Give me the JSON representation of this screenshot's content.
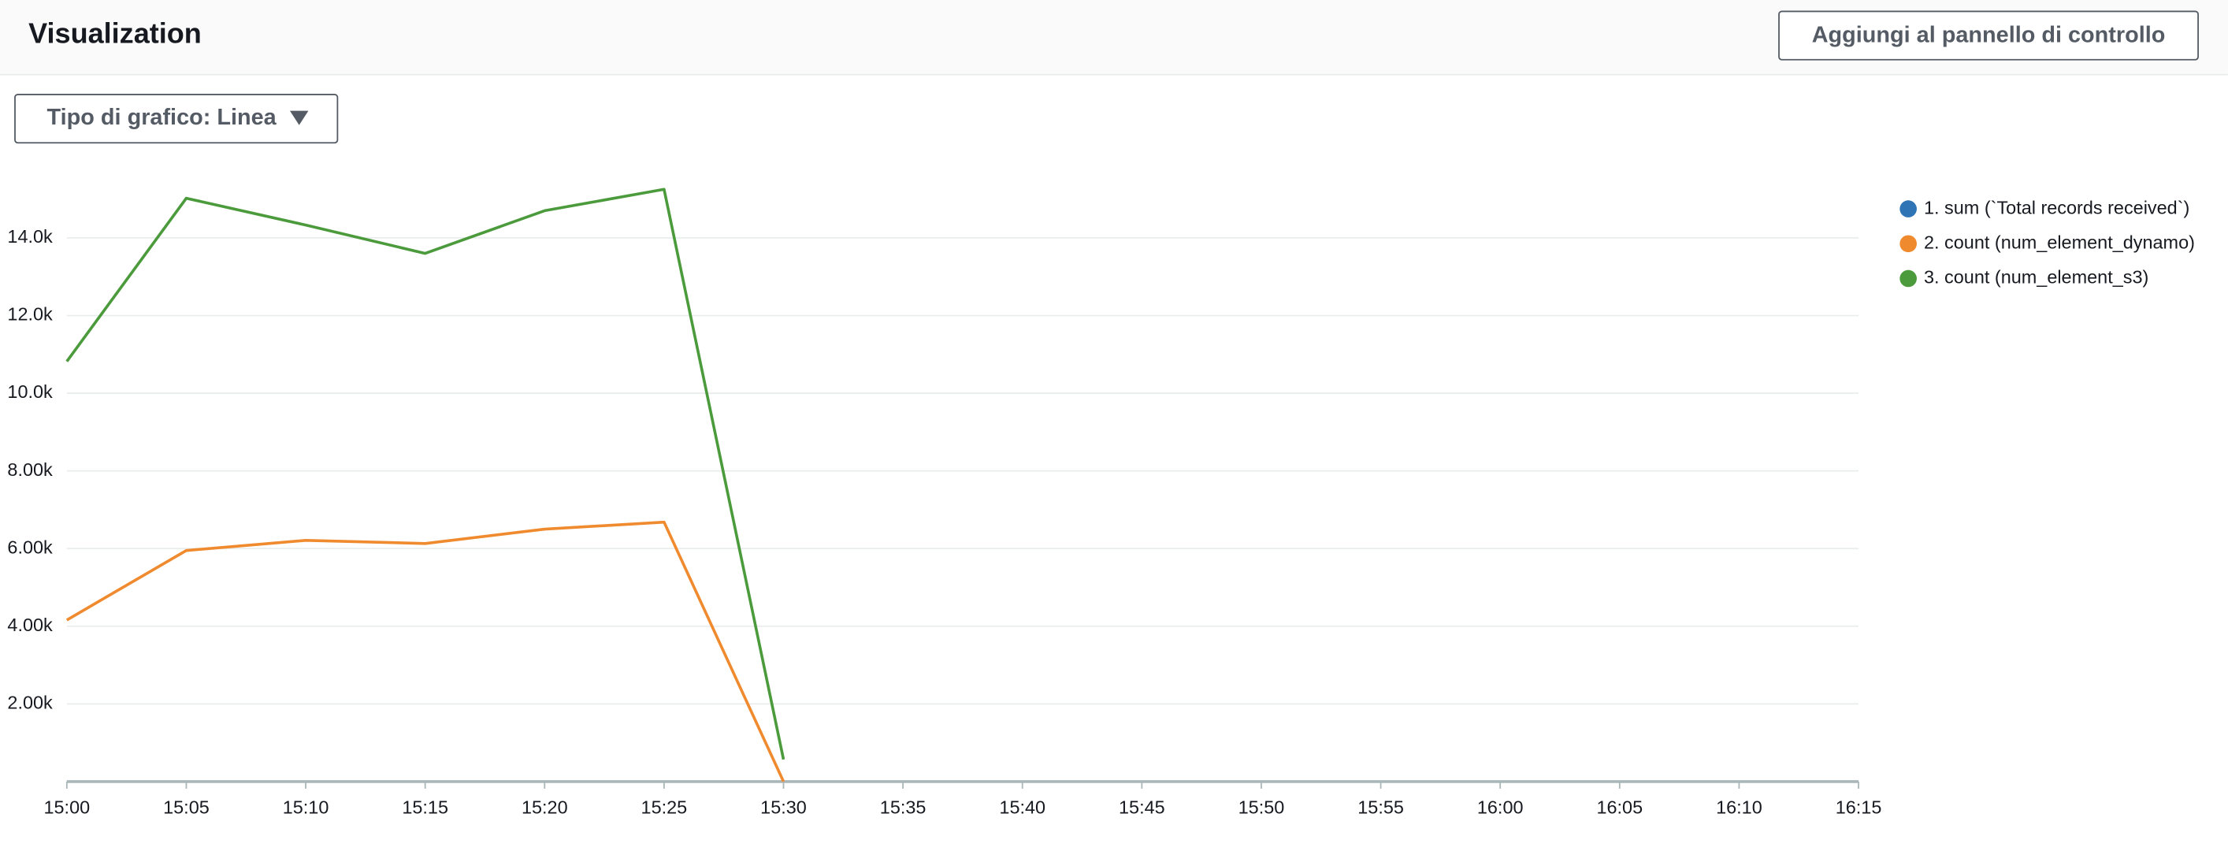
{
  "header": {
    "title": "Visualization",
    "button": "Aggiungi al pannello di controllo"
  },
  "dropdown": {
    "label": "Tipo di grafico: Linea"
  },
  "chart_data": {
    "type": "line",
    "categories": [
      "15:00",
      "15:05",
      "15:10",
      "15:15",
      "15:20",
      "15:25",
      "15:30",
      "15:35",
      "15:40",
      "15:45",
      "15:50",
      "15:55",
      "16:00",
      "16:05",
      "16:10",
      "16:15"
    ],
    "series": [
      {
        "name": "1. sum (`Total records received`)",
        "color": "#2f74b5",
        "values": [
          null,
          null,
          null,
          null,
          null,
          null,
          null,
          null,
          null,
          null,
          null,
          null,
          null,
          null,
          null,
          null
        ]
      },
      {
        "name": "2. count (num_element_dynamo)",
        "color": "#f08a2e",
        "values": [
          4160,
          5950,
          6210,
          6130,
          6500,
          6680,
          0,
          null,
          null,
          null,
          null,
          null,
          null,
          null,
          null,
          null
        ]
      },
      {
        "name": "3. count (num_element_s3)",
        "color": "#4b9a3c",
        "values": [
          10820,
          15020,
          14330,
          13600,
          14700,
          15250,
          570,
          null,
          null,
          null,
          null,
          null,
          null,
          null,
          null,
          null
        ]
      }
    ],
    "ylim": [
      0,
      15500
    ],
    "yticks": [
      {
        "value": 2000,
        "label": "2.00k"
      },
      {
        "value": 4000,
        "label": "4.00k"
      },
      {
        "value": 6000,
        "label": "6.00k"
      },
      {
        "value": 8000,
        "label": "8.00k"
      },
      {
        "value": 10000,
        "label": "10.0k"
      },
      {
        "value": 12000,
        "label": "12.0k"
      },
      {
        "value": 14000,
        "label": "14.0k"
      }
    ],
    "grid": true,
    "legend": "right"
  }
}
